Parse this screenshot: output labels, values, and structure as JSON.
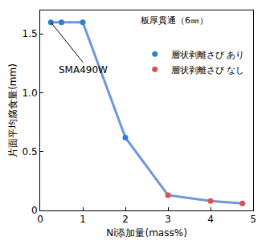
{
  "chart_data": {
    "type": "line",
    "x_label": "Ni添加量(mass%)",
    "y_label": "片面平均腐食量(mm)",
    "annotations": [
      "板厚貫通（6㎜）",
      "SMA490W"
    ],
    "color": "#7098d8",
    "series": [
      {
        "name": "層状剥離さび あり",
        "color": "#2f7fd0",
        "marker": "circle",
        "x": [
          0.25,
          0.5,
          1,
          2
        ],
        "values": [
          1.6,
          1.6,
          1.6,
          0.62
        ],
        "arrows": [
          true,
          true,
          true,
          false
        ]
      },
      {
        "name": "層状剥離さび なし",
        "color": "#e0504a",
        "marker": "circle",
        "x": [
          3,
          4,
          4.75
        ],
        "values": [
          0.13,
          0.08,
          0.06
        ],
        "arrows": [
          false,
          false,
          false
        ]
      }
    ],
    "xlim": [
      0,
      5
    ],
    "xticks": [
      0,
      1,
      2,
      3,
      4,
      5
    ],
    "ylim": [
      0,
      1.7
    ],
    "yticks": [
      0,
      {
        "value": 0.5,
        "label": "0.5"
      },
      {
        "value": 1,
        "label": "1.0"
      },
      {
        "value": 1.5,
        "label": "1.5"
      }
    ],
    "grid": false,
    "legend": "upper right"
  }
}
